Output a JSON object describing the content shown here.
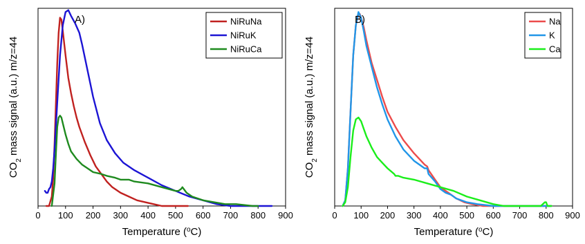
{
  "chart_data": [
    {
      "type": "line",
      "panel_label": "A)",
      "xlabel": "Temperature (",
      "xlabel_super": "o",
      "xlabel_tail": "C)",
      "ylabel_parts": [
        "CO",
        "2",
        " mass signal (a.u.) m/z=44"
      ],
      "xlim": [
        0,
        900
      ],
      "x_ticks": [
        "0",
        "100",
        "200",
        "300",
        "400",
        "500",
        "600",
        "700",
        "800",
        "900"
      ],
      "ylim": [
        0,
        1.05
      ],
      "y_ticks_labeled": false,
      "legend_position": "top-right",
      "series": [
        {
          "name": "NiRuNa",
          "color": "#c0211f",
          "x": [
            30,
            40,
            50,
            55,
            60,
            65,
            70,
            75,
            80,
            85,
            90,
            100,
            110,
            120,
            130,
            140,
            150,
            170,
            190,
            210,
            230,
            250,
            270,
            300,
            330,
            360,
            390,
            420,
            450,
            480,
            500,
            520,
            530,
            545
          ],
          "y": [
            0.0,
            0.0,
            0.05,
            0.15,
            0.33,
            0.55,
            0.76,
            0.92,
            1.0,
            0.99,
            0.93,
            0.8,
            0.68,
            0.6,
            0.53,
            0.47,
            0.42,
            0.34,
            0.27,
            0.21,
            0.17,
            0.13,
            0.1,
            0.07,
            0.05,
            0.03,
            0.02,
            0.01,
            0.0,
            0.0,
            0.0,
            0.0,
            0.0,
            0.0
          ]
        },
        {
          "name": "NiRuK",
          "color": "#1c14d4",
          "x": [
            25,
            30,
            35,
            40,
            45,
            50,
            55,
            60,
            70,
            80,
            90,
            100,
            110,
            120,
            135,
            150,
            160,
            180,
            200,
            225,
            250,
            280,
            310,
            350,
            400,
            450,
            500,
            550,
            600,
            650,
            700,
            750,
            800,
            830,
            850
          ],
          "y": [
            0.08,
            0.07,
            0.07,
            0.09,
            0.1,
            0.13,
            0.2,
            0.3,
            0.55,
            0.8,
            0.96,
            1.03,
            1.04,
            1.01,
            0.97,
            0.92,
            0.86,
            0.72,
            0.58,
            0.44,
            0.35,
            0.28,
            0.23,
            0.19,
            0.15,
            0.11,
            0.08,
            0.05,
            0.03,
            0.01,
            0.0,
            0.0,
            0.0,
            0.0,
            0.0
          ]
        },
        {
          "name": "NiRuCa",
          "color": "#1e8a1e",
          "x": [
            50,
            60,
            65,
            70,
            75,
            80,
            85,
            90,
            100,
            110,
            120,
            140,
            160,
            180,
            200,
            230,
            250,
            280,
            300,
            330,
            350,
            400,
            450,
            500,
            510,
            520,
            525,
            530,
            540,
            560,
            600,
            640,
            680,
            720,
            780,
            800
          ],
          "y": [
            0.0,
            0.12,
            0.28,
            0.42,
            0.47,
            0.48,
            0.47,
            0.44,
            0.38,
            0.33,
            0.29,
            0.25,
            0.22,
            0.2,
            0.18,
            0.17,
            0.16,
            0.15,
            0.14,
            0.14,
            0.13,
            0.12,
            0.1,
            0.08,
            0.08,
            0.09,
            0.1,
            0.09,
            0.07,
            0.05,
            0.03,
            0.02,
            0.01,
            0.01,
            0.0,
            0.0
          ]
        }
      ]
    },
    {
      "type": "line",
      "panel_label": "B)",
      "xlabel": "Temperature (",
      "xlabel_super": "o",
      "xlabel_tail": "C)",
      "ylabel_parts": [
        "CO",
        "2",
        " mass signal (a.u.) m/z=44"
      ],
      "xlim": [
        0,
        900
      ],
      "x_ticks": [
        "0",
        "100",
        "200",
        "300",
        "400",
        "500",
        "600",
        "700",
        "800",
        "900"
      ],
      "ylim": [
        0,
        1.05
      ],
      "y_ticks_labeled": false,
      "legend_position": "top-right",
      "series": [
        {
          "name": "Na",
          "color": "#ec4b4b",
          "x": [
            30,
            40,
            50,
            60,
            70,
            80,
            90,
            95,
            100,
            110,
            120,
            140,
            160,
            180,
            200,
            230,
            260,
            300,
            340,
            350,
            355,
            380,
            400,
            430,
            460,
            490,
            520,
            560,
            600,
            700,
            800,
            820
          ],
          "y": [
            0.0,
            0.03,
            0.2,
            0.5,
            0.8,
            0.96,
            1.02,
            1.02,
            1.0,
            0.95,
            0.88,
            0.76,
            0.67,
            0.58,
            0.5,
            0.42,
            0.35,
            0.28,
            0.22,
            0.21,
            0.19,
            0.14,
            0.1,
            0.07,
            0.04,
            0.02,
            0.01,
            0.0,
            0.0,
            0.0,
            0.0,
            0.0
          ]
        },
        {
          "name": "K",
          "color": "#2196e8",
          "x": [
            30,
            40,
            50,
            60,
            70,
            80,
            90,
            100,
            110,
            120,
            140,
            160,
            180,
            200,
            230,
            260,
            300,
            340,
            350,
            355,
            380,
            400,
            420,
            440,
            460,
            500,
            540,
            600,
            700,
            800,
            820
          ],
          "y": [
            0.0,
            0.03,
            0.2,
            0.5,
            0.8,
            0.96,
            1.03,
            1.0,
            0.93,
            0.85,
            0.74,
            0.63,
            0.54,
            0.46,
            0.37,
            0.3,
            0.24,
            0.2,
            0.2,
            0.17,
            0.13,
            0.09,
            0.07,
            0.06,
            0.04,
            0.02,
            0.01,
            0.0,
            0.0,
            0.0,
            0.0
          ]
        },
        {
          "name": "Ca",
          "color": "#1aee1a",
          "x": [
            30,
            40,
            50,
            60,
            70,
            80,
            90,
            100,
            110,
            120,
            140,
            160,
            180,
            200,
            225,
            230,
            240,
            260,
            300,
            350,
            400,
            450,
            500,
            550,
            600,
            640,
            700,
            780,
            795,
            800,
            805,
            820
          ],
          "y": [
            0.0,
            0.02,
            0.1,
            0.26,
            0.4,
            0.46,
            0.47,
            0.45,
            0.41,
            0.37,
            0.31,
            0.26,
            0.23,
            0.2,
            0.17,
            0.16,
            0.16,
            0.15,
            0.14,
            0.12,
            0.1,
            0.08,
            0.05,
            0.03,
            0.01,
            0.0,
            0.0,
            0.0,
            0.02,
            0.02,
            0.0,
            0.0
          ]
        }
      ]
    }
  ]
}
